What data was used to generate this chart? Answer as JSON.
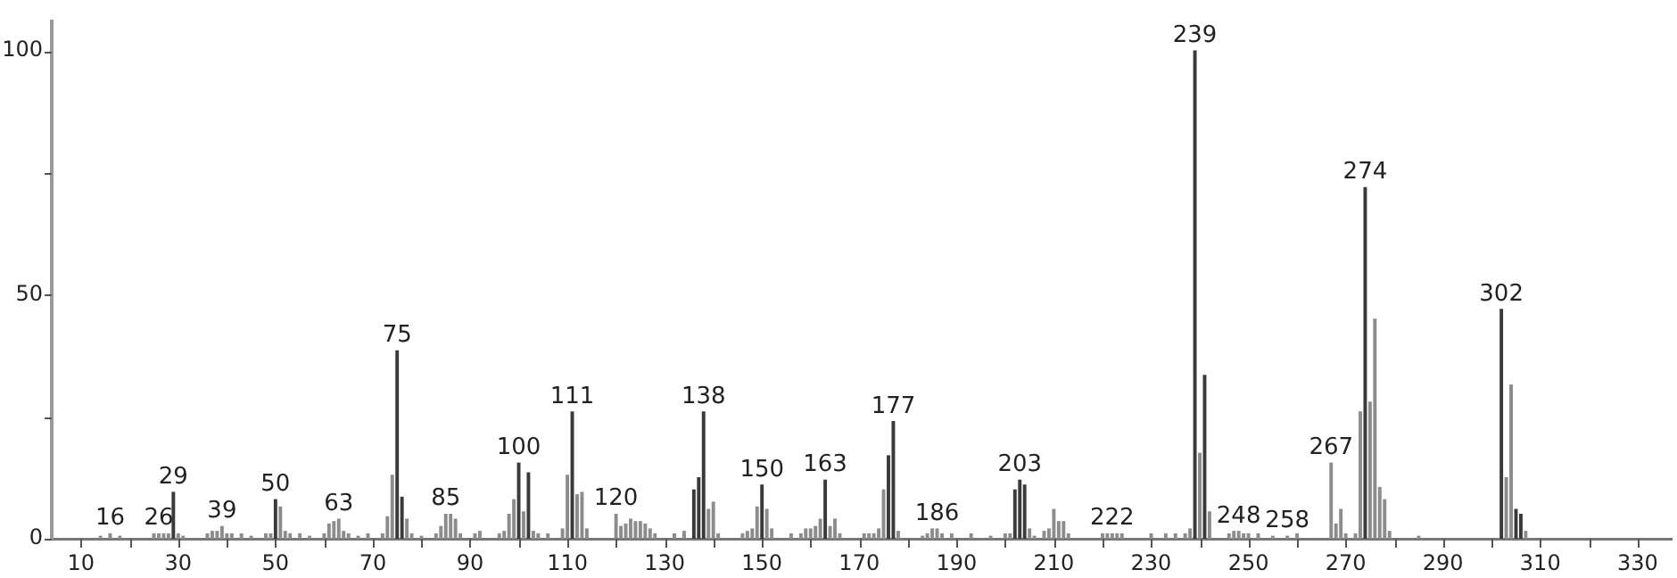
{
  "chart_data": {
    "type": "bar",
    "xlim": [
      4,
      337
    ],
    "ylim": [
      0,
      106
    ],
    "xticks": [
      10,
      {
        "value": 20,
        "label": null
      },
      30,
      {
        "value": 40,
        "label": null
      },
      50,
      {
        "value": 60,
        "label": null
      },
      70,
      {
        "value": 80,
        "label": null
      },
      90,
      {
        "value": 100,
        "label": null
      },
      110,
      {
        "value": 120,
        "label": null
      },
      130,
      {
        "value": 140,
        "label": null
      },
      150,
      {
        "value": 160,
        "label": null
      },
      170,
      {
        "value": 180,
        "label": null
      },
      190,
      {
        "value": 200,
        "label": null
      },
      210,
      {
        "value": 220,
        "label": null
      },
      230,
      {
        "value": 240,
        "label": null
      },
      250,
      {
        "value": 260,
        "label": null
      },
      270,
      {
        "value": 280,
        "label": null
      },
      290,
      {
        "value": 300,
        "label": null
      },
      310,
      {
        "value": 320,
        "label": null
      },
      330
    ],
    "yticks": [
      0,
      {
        "value": 25,
        "label": null
      },
      50,
      {
        "value": 75,
        "label": null
      },
      100
    ],
    "grid": false,
    "legend": false,
    "series": [
      {
        "color": "#3a3a3a",
        "x": [
          29,
          50,
          75,
          76,
          100,
          102,
          111,
          136,
          137,
          138,
          150,
          163,
          176,
          177,
          202,
          203,
          204,
          239,
          241,
          274,
          302,
          305,
          306
        ],
        "values": [
          9.5,
          8,
          38.5,
          8.5,
          15.5,
          13.5,
          26,
          10,
          12.5,
          26,
          11,
          12,
          17,
          24,
          10,
          12,
          11,
          100,
          33.5,
          72,
          47,
          6,
          5
        ]
      },
      {
        "color": "#8c8c8c",
        "x": [
          14,
          16,
          18,
          25,
          26,
          27,
          28,
          30,
          31,
          36,
          37,
          38,
          39,
          40,
          41,
          43,
          45,
          48,
          49,
          51,
          52,
          53,
          55,
          57,
          60,
          61,
          62,
          63,
          64,
          65,
          67,
          69,
          72,
          73,
          74,
          77,
          78,
          80,
          83,
          84,
          85,
          86,
          87,
          88,
          91,
          92,
          96,
          97,
          98,
          99,
          101,
          103,
          104,
          106,
          109,
          110,
          112,
          113,
          114,
          120,
          121,
          122,
          123,
          124,
          125,
          126,
          127,
          128,
          132,
          134,
          139,
          140,
          141,
          146,
          147,
          148,
          149,
          151,
          152,
          156,
          158,
          159,
          160,
          161,
          162,
          164,
          165,
          166,
          171,
          172,
          173,
          174,
          175,
          178,
          183,
          184,
          185,
          186,
          187,
          189,
          193,
          197,
          200,
          201,
          205,
          206,
          208,
          209,
          210,
          211,
          212,
          213,
          220,
          221,
          222,
          223,
          224,
          230,
          233,
          235,
          237,
          238,
          240,
          242,
          246,
          247,
          248,
          249,
          250,
          252,
          255,
          258,
          260,
          267,
          268,
          269,
          270,
          272,
          273,
          275,
          276,
          277,
          278,
          279,
          285,
          303,
          304,
          307
        ],
        "values": [
          0.5,
          1,
          0.5,
          1,
          1,
          1,
          1,
          1,
          0.5,
          1,
          1.5,
          1.5,
          2.5,
          1,
          1,
          1,
          0.5,
          1,
          1,
          6.5,
          1.5,
          1,
          1,
          0.5,
          1,
          3,
          3.5,
          4,
          1.5,
          1,
          0.5,
          1,
          1,
          4.5,
          13,
          4,
          1,
          0.5,
          1,
          2.5,
          5,
          5,
          4,
          1,
          1,
          1.5,
          1,
          1.5,
          5,
          8,
          5.5,
          1.5,
          1,
          1,
          2,
          13,
          9,
          9.5,
          2,
          5,
          2.5,
          3,
          4,
          3.5,
          3.5,
          3,
          2,
          1,
          1,
          1.5,
          6,
          7.5,
          1,
          1,
          1.5,
          2,
          6.5,
          6,
          2,
          1,
          1,
          2,
          2,
          2.5,
          4,
          2.5,
          4,
          1,
          1,
          1,
          1,
          2,
          10,
          1.5,
          0.5,
          1,
          2,
          2,
          1,
          1,
          1,
          0.5,
          1,
          1,
          2,
          0.5,
          1.5,
          2,
          6,
          3.5,
          3.5,
          1,
          1,
          1,
          1,
          1,
          1,
          1,
          1,
          1,
          1,
          2,
          17.5,
          5.5,
          1,
          1.5,
          1.5,
          1,
          1,
          1,
          0.5,
          0.5,
          1,
          15.5,
          3,
          6,
          1,
          1,
          26,
          28,
          45,
          10.5,
          8,
          1.5,
          0.5,
          12.5,
          31.5,
          1.5
        ]
      }
    ],
    "annotations": [
      {
        "text": "16",
        "x": 16,
        "y": 1
      },
      {
        "text": "26",
        "x": 26,
        "y": 1
      },
      {
        "text": "29",
        "x": 29,
        "y": 9.5
      },
      {
        "text": "39",
        "x": 39,
        "y": 2.5
      },
      {
        "text": "50",
        "x": 50,
        "y": 8
      },
      {
        "text": "63",
        "x": 63,
        "y": 4
      },
      {
        "text": "75",
        "x": 75,
        "y": 38.5
      },
      {
        "text": "85",
        "x": 85,
        "y": 5
      },
      {
        "text": "100",
        "x": 100,
        "y": 15.5
      },
      {
        "text": "111",
        "x": 111,
        "y": 26
      },
      {
        "text": "120",
        "x": 120,
        "y": 5
      },
      {
        "text": "138",
        "x": 138,
        "y": 26
      },
      {
        "text": "150",
        "x": 150,
        "y": 11
      },
      {
        "text": "163",
        "x": 163,
        "y": 12
      },
      {
        "text": "177",
        "x": 177,
        "y": 24
      },
      {
        "text": "186",
        "x": 186,
        "y": 2
      },
      {
        "text": "203",
        "x": 203,
        "y": 12
      },
      {
        "text": "222",
        "x": 222,
        "y": 1
      },
      {
        "text": "239",
        "x": 239,
        "y": 100
      },
      {
        "text": "248",
        "x": 248,
        "y": 1.5
      },
      {
        "text": "258",
        "x": 258,
        "y": 0.5
      },
      {
        "text": "267",
        "x": 267,
        "y": 15.5
      },
      {
        "text": "274",
        "x": 274,
        "y": 72
      },
      {
        "text": "302",
        "x": 302,
        "y": 47
      }
    ]
  }
}
